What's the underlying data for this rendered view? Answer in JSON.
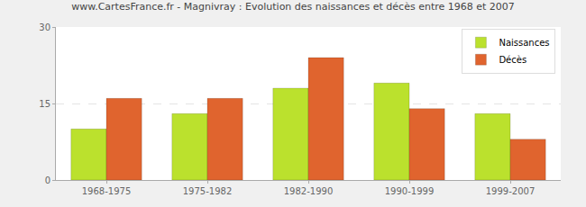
{
  "chart_data": {
    "type": "bar",
    "title": "www.CartesFrance.fr - Magnivray : Evolution des naissances et décès entre 1968 et 2007",
    "categories": [
      "1968-1975",
      "1975-1982",
      "1982-1990",
      "1990-1999",
      "1999-2007"
    ],
    "series": [
      {
        "name": "Naissances",
        "color": "#bbe12d",
        "values": [
          10,
          13,
          18,
          19,
          13
        ]
      },
      {
        "name": "Décès",
        "color": "#e0642e",
        "values": [
          16,
          16,
          24,
          14,
          8
        ]
      }
    ],
    "ylim": [
      0,
      30
    ],
    "yticks": [
      0,
      15,
      30
    ],
    "grid": true,
    "legend": "top right"
  }
}
